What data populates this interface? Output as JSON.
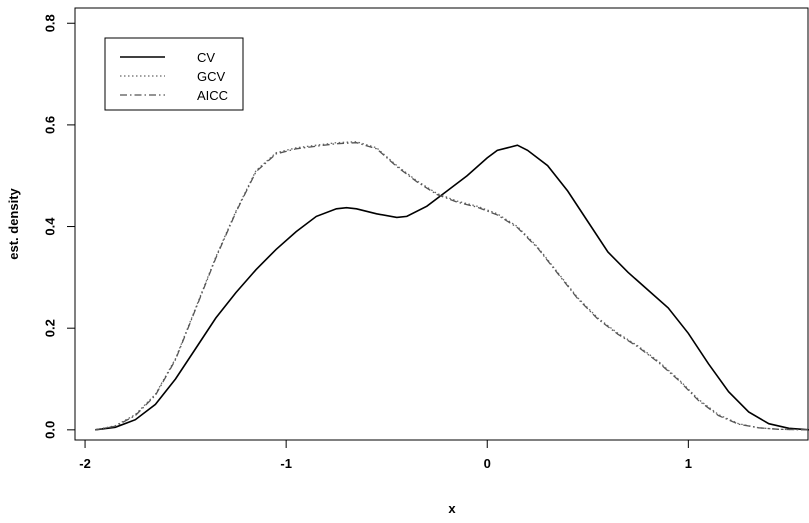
{
  "chart_data": {
    "type": "line",
    "title": "",
    "xlabel": "x",
    "ylabel": "est. density",
    "xlim": [
      -2.05,
      1.6
    ],
    "ylim": [
      -0.02,
      0.83
    ],
    "xticks": [
      -2,
      -1,
      0,
      1
    ],
    "xtick_labels": [
      "-2",
      "-1",
      "0",
      "1"
    ],
    "yticks": [
      0.0,
      0.2,
      0.4,
      0.6,
      0.8
    ],
    "ytick_labels": [
      "0.0",
      "0.2",
      "0.4",
      "0.6",
      "0.8"
    ],
    "grid": false,
    "legend_position": "top-left",
    "series": [
      {
        "name": "CV",
        "style": "solid",
        "color": "#000000",
        "x": [
          -1.95,
          -1.85,
          -1.75,
          -1.65,
          -1.55,
          -1.45,
          -1.35,
          -1.25,
          -1.15,
          -1.05,
          -0.95,
          -0.85,
          -0.75,
          -0.7,
          -0.65,
          -0.55,
          -0.45,
          -0.4,
          -0.3,
          -0.2,
          -0.1,
          0.0,
          0.05,
          0.1,
          0.15,
          0.2,
          0.3,
          0.4,
          0.5,
          0.6,
          0.7,
          0.8,
          0.9,
          1.0,
          1.1,
          1.2,
          1.3,
          1.4,
          1.5,
          1.6
        ],
        "y": [
          0.0,
          0.005,
          0.02,
          0.05,
          0.1,
          0.16,
          0.22,
          0.27,
          0.315,
          0.355,
          0.39,
          0.42,
          0.435,
          0.437,
          0.435,
          0.425,
          0.418,
          0.42,
          0.44,
          0.47,
          0.5,
          0.535,
          0.55,
          0.555,
          0.56,
          0.55,
          0.52,
          0.47,
          0.41,
          0.35,
          0.31,
          0.275,
          0.24,
          0.19,
          0.13,
          0.075,
          0.035,
          0.012,
          0.003,
          0.0
        ]
      },
      {
        "name": "GCV",
        "style": "dotted",
        "color": "#666666",
        "x": [
          -1.95,
          -1.85,
          -1.75,
          -1.65,
          -1.55,
          -1.45,
          -1.35,
          -1.25,
          -1.15,
          -1.05,
          -0.95,
          -0.85,
          -0.75,
          -0.65,
          -0.55,
          -0.45,
          -0.35,
          -0.25,
          -0.15,
          -0.05,
          0.05,
          0.15,
          0.25,
          0.35,
          0.45,
          0.55,
          0.65,
          0.75,
          0.85,
          0.95,
          1.05,
          1.15,
          1.25,
          1.35,
          1.45,
          1.6
        ],
        "y": [
          0.0,
          0.008,
          0.03,
          0.07,
          0.14,
          0.24,
          0.34,
          0.43,
          0.51,
          0.545,
          0.555,
          0.56,
          0.565,
          0.567,
          0.555,
          0.52,
          0.49,
          0.465,
          0.45,
          0.44,
          0.425,
          0.4,
          0.36,
          0.31,
          0.26,
          0.22,
          0.19,
          0.165,
          0.135,
          0.1,
          0.06,
          0.03,
          0.012,
          0.004,
          0.001,
          0.0
        ]
      },
      {
        "name": "AICC",
        "style": "dashdot",
        "color": "#555555",
        "x": [
          -1.95,
          -1.85,
          -1.75,
          -1.65,
          -1.55,
          -1.45,
          -1.35,
          -1.25,
          -1.15,
          -1.05,
          -0.95,
          -0.85,
          -0.75,
          -0.65,
          -0.55,
          -0.45,
          -0.35,
          -0.25,
          -0.15,
          -0.05,
          0.05,
          0.15,
          0.25,
          0.35,
          0.45,
          0.55,
          0.65,
          0.75,
          0.85,
          0.95,
          1.05,
          1.15,
          1.25,
          1.35,
          1.45,
          1.6
        ],
        "y": [
          0.0,
          0.007,
          0.028,
          0.068,
          0.138,
          0.238,
          0.338,
          0.428,
          0.508,
          0.543,
          0.553,
          0.558,
          0.563,
          0.565,
          0.553,
          0.518,
          0.488,
          0.463,
          0.448,
          0.438,
          0.423,
          0.398,
          0.358,
          0.308,
          0.258,
          0.218,
          0.188,
          0.163,
          0.133,
          0.098,
          0.058,
          0.028,
          0.011,
          0.004,
          0.001,
          0.0
        ]
      }
    ]
  }
}
